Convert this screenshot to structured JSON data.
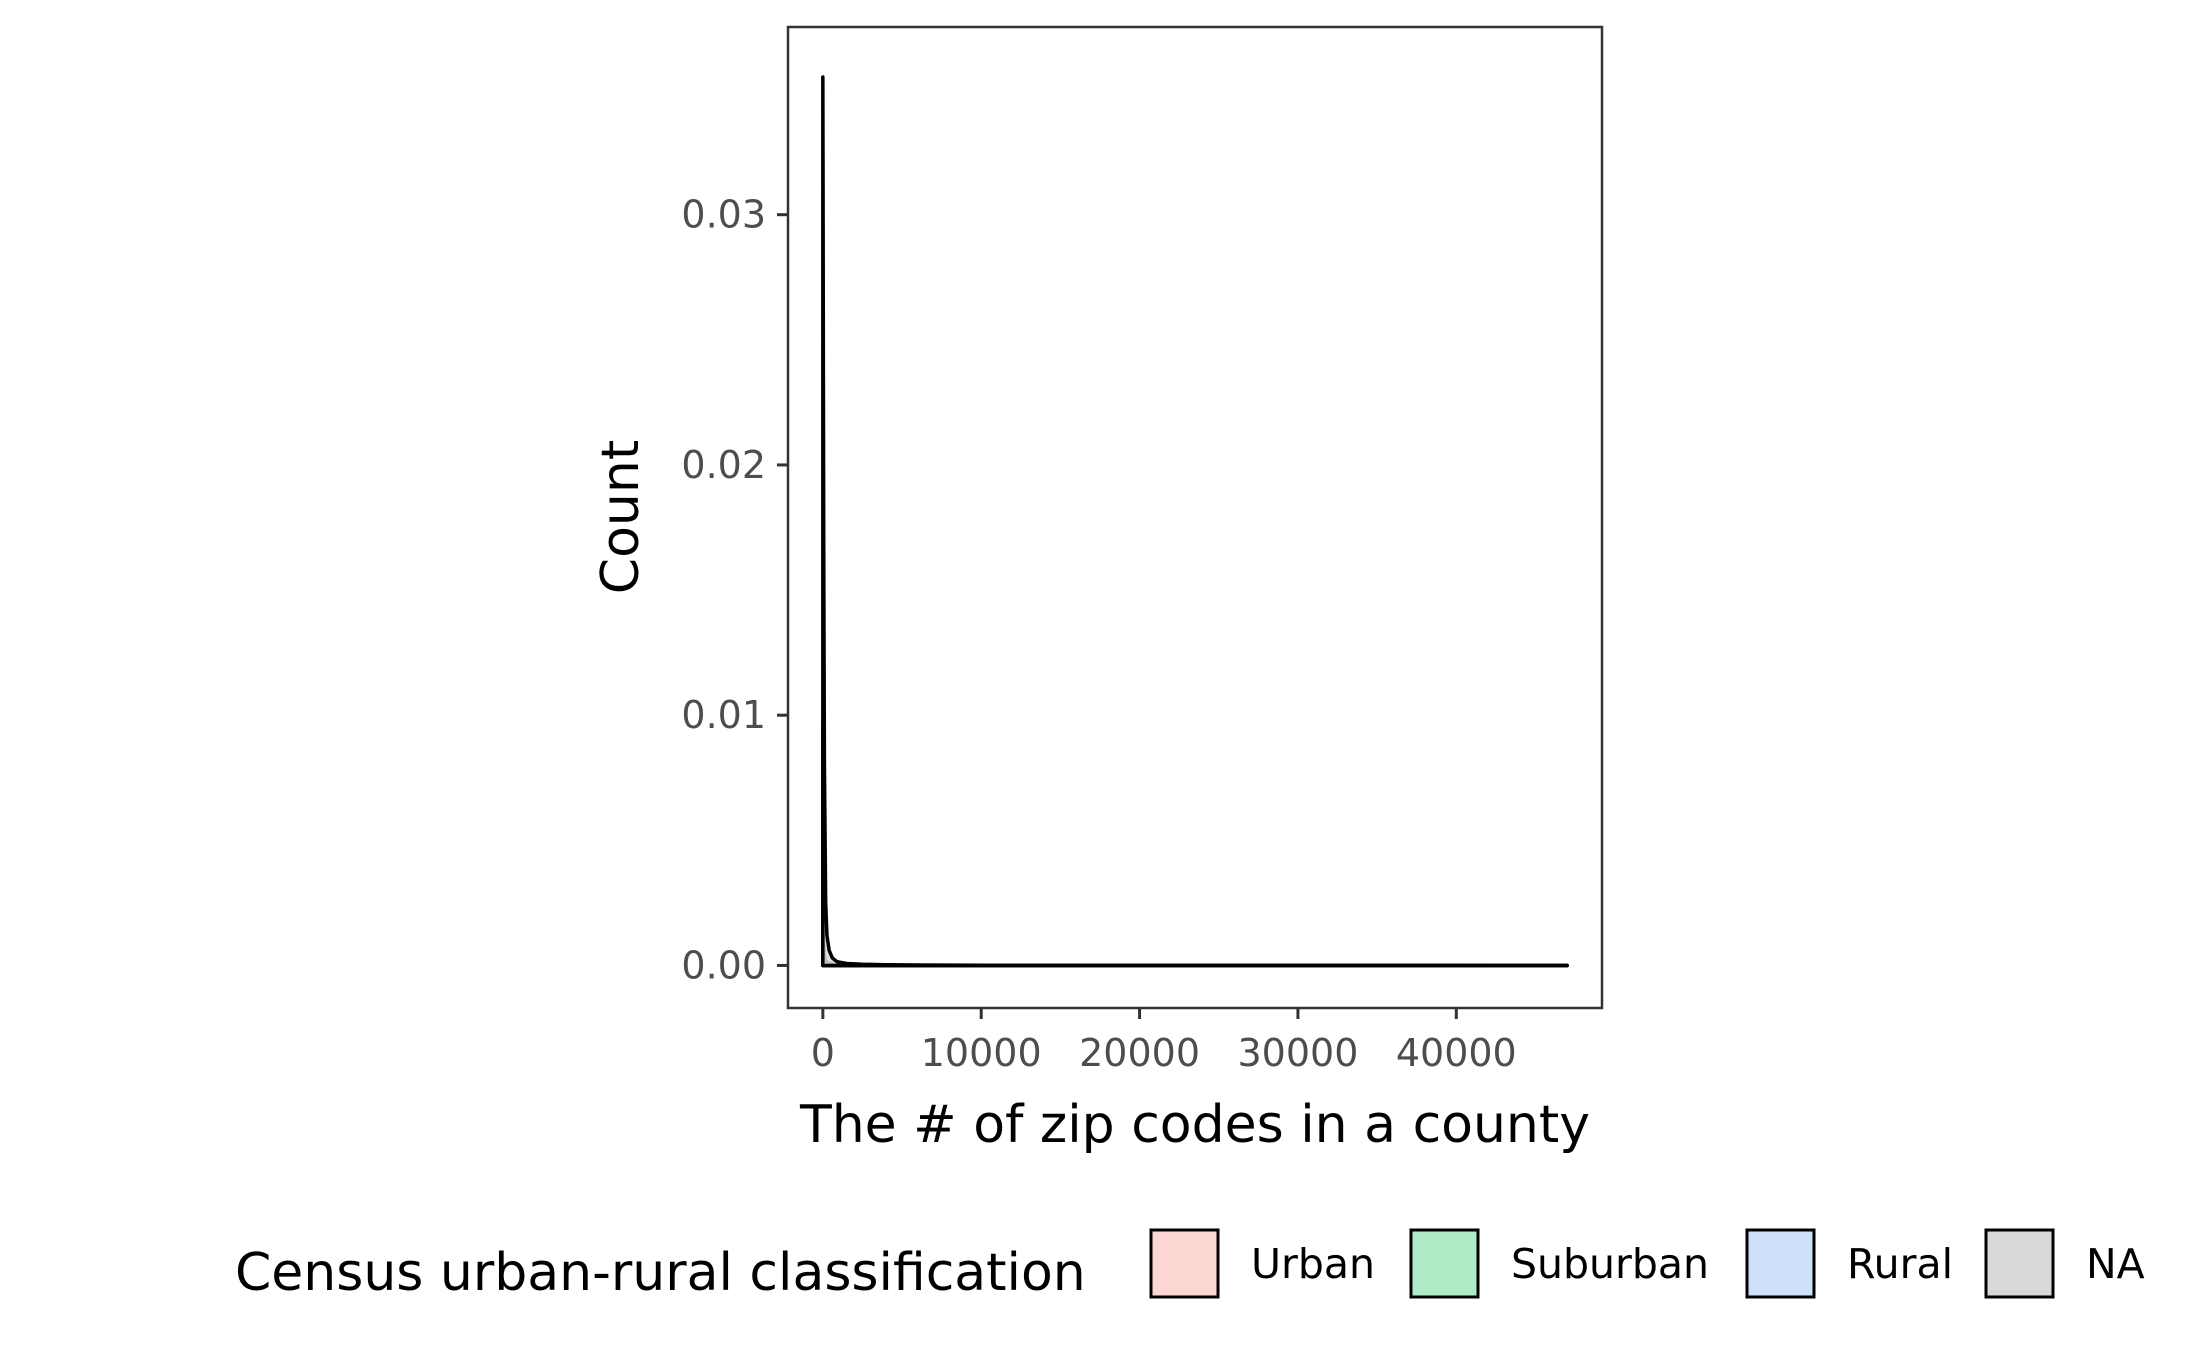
{
  "chart_data": {
    "type": "area",
    "xlabel": "The # of zip codes in a county",
    "ylabel": "Count",
    "xlim": [
      -2200,
      49200
    ],
    "ylim": [
      -0.0017,
      0.0375
    ],
    "x_ticks": [
      0,
      10000,
      20000,
      30000,
      40000
    ],
    "x_tick_labels": [
      "0",
      "10000",
      "20000",
      "30000",
      "40000"
    ],
    "y_ticks": [
      0,
      0.01,
      0.02,
      0.03
    ],
    "y_tick_labels": [
      "0.00",
      "0.01",
      "0.02",
      "0.03"
    ],
    "grid": false,
    "legend_position": "bottom",
    "legend_title": "Census urban-rural classification",
    "series": [
      {
        "name": "Urban",
        "fill": "#fcd6d3",
        "x": [
          0,
          2,
          5,
          10,
          20,
          40,
          80,
          150,
          300,
          600,
          1200,
          2500,
          5000,
          10000,
          20000,
          30000,
          40000,
          47000
        ],
        "y": [
          0.0002,
          0.0004,
          0.0006,
          0.0005,
          0.0004,
          0.0003,
          0.0002,
          0.0001,
          5e-05,
          3e-05,
          2e-05,
          1e-05,
          5e-06,
          0,
          0,
          0,
          0,
          0
        ]
      },
      {
        "name": "Suburban",
        "fill": "#b2ebc8",
        "x": [
          0,
          2,
          5,
          10,
          20,
          40,
          80,
          150,
          300,
          600,
          1200,
          2500,
          5000,
          10000,
          20000,
          30000,
          40000,
          47000
        ],
        "y": [
          0.0015,
          0.002,
          0.0018,
          0.0014,
          0.0009,
          0.0005,
          0.0003,
          0.0002,
          0.0001,
          5e-05,
          2e-05,
          1e-05,
          0,
          0,
          0,
          0,
          0,
          0
        ]
      },
      {
        "name": "Rural",
        "fill": "#cfe0fb",
        "x": [
          0,
          2,
          5,
          10,
          20,
          40,
          80,
          150,
          300,
          600,
          1200,
          2500,
          5000,
          10000,
          20000,
          30000,
          40000,
          47000
        ],
        "y": [
          0.0088,
          0.0098,
          0.0082,
          0.0055,
          0.003,
          0.0012,
          0.0005,
          0.0002,
          0.0001,
          4e-05,
          2e-05,
          1e-05,
          0,
          0,
          0,
          0,
          0,
          0
        ]
      },
      {
        "name": "NA",
        "fill": "#d9d9d9",
        "x": [
          0,
          5,
          15,
          30,
          60,
          100,
          180,
          260,
          400,
          600,
          900,
          1500,
          2500,
          4000,
          6000,
          10000,
          20000,
          30000,
          40000,
          47000
        ],
        "y": [
          0.0355,
          0.034,
          0.031,
          0.025,
          0.016,
          0.008,
          0.0025,
          0.0012,
          0.0006,
          0.0003,
          0.00015,
          8e-05,
          5e-05,
          3e-05,
          2e-05,
          1e-05,
          5e-06,
          2e-06,
          1e-06,
          0
        ]
      }
    ]
  }
}
